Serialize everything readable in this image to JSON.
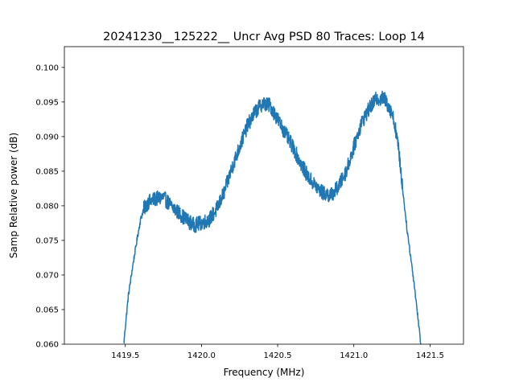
{
  "chart_data": {
    "type": "line",
    "title": "20241230__125222__  Uncr Avg PSD 80 Traces: Loop 14",
    "xlabel": "Frequency (MHz)",
    "ylabel": "Samp Relative power (dB)",
    "xlim": [
      1419.1,
      1421.72
    ],
    "ylim": [
      0.06,
      0.103
    ],
    "xticks": [
      1419.5,
      1420.0,
      1420.5,
      1421.0,
      1421.5
    ],
    "xtick_labels": [
      "1419.5",
      "1420.0",
      "1420.5",
      "1421.0",
      "1421.5"
    ],
    "yticks": [
      0.06,
      0.065,
      0.07,
      0.075,
      0.08,
      0.085,
      0.09,
      0.095,
      0.1
    ],
    "ytick_labels": [
      "0.060",
      "0.065",
      "0.070",
      "0.075",
      "0.080",
      "0.085",
      "0.090",
      "0.095",
      "0.100"
    ],
    "grid": false,
    "series": [
      {
        "color": "#1f77b4",
        "x": [
          1419.49,
          1419.5,
          1419.52,
          1419.55,
          1419.58,
          1419.6,
          1419.62,
          1419.65,
          1419.7,
          1419.75,
          1419.8,
          1419.85,
          1419.9,
          1419.95,
          1420.0,
          1420.05,
          1420.1,
          1420.15,
          1420.2,
          1420.25,
          1420.3,
          1420.35,
          1420.4,
          1420.45,
          1420.5,
          1420.55,
          1420.6,
          1420.65,
          1420.7,
          1420.75,
          1420.8,
          1420.85,
          1420.9,
          1420.95,
          1421.0,
          1421.05,
          1421.1,
          1421.15,
          1421.2,
          1421.25,
          1421.28,
          1421.3,
          1421.32,
          1421.35,
          1421.38,
          1421.4,
          1421.42,
          1421.44
        ],
        "y": [
          0.06,
          0.0625,
          0.067,
          0.0715,
          0.0755,
          0.078,
          0.0795,
          0.0805,
          0.081,
          0.0812,
          0.08,
          0.079,
          0.078,
          0.0772,
          0.0775,
          0.078,
          0.0795,
          0.082,
          0.0855,
          0.0885,
          0.0915,
          0.0935,
          0.0948,
          0.0945,
          0.0925,
          0.0905,
          0.0885,
          0.0862,
          0.0842,
          0.0828,
          0.0818,
          0.0815,
          0.0828,
          0.085,
          0.0885,
          0.092,
          0.094,
          0.0955,
          0.0955,
          0.0935,
          0.0905,
          0.087,
          0.0825,
          0.0765,
          0.0715,
          0.068,
          0.064,
          0.06
        ]
      }
    ]
  }
}
